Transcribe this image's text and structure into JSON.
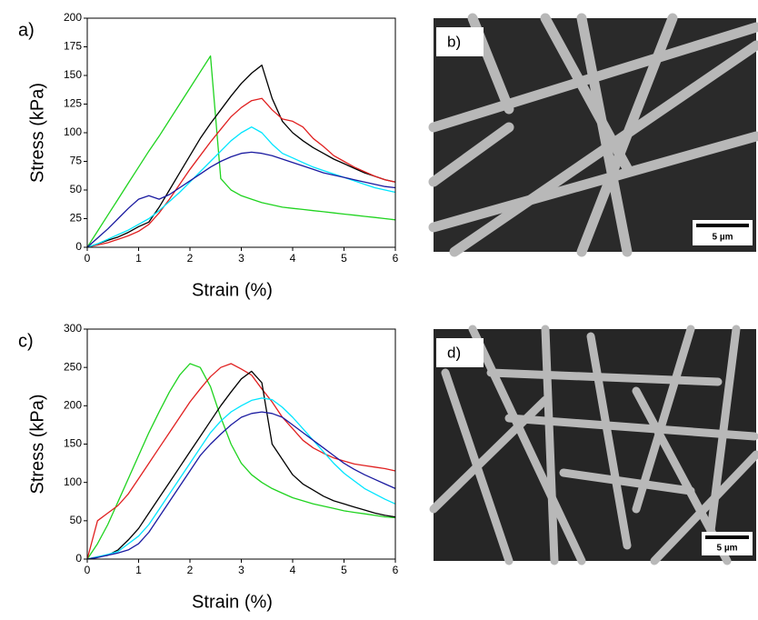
{
  "chart_data": [
    {
      "type": "line",
      "panel": "a)",
      "x_label": "Strain (%)",
      "y_label": "Stress (kPa)",
      "x": [
        0,
        0.2,
        0.4,
        0.6,
        0.8,
        1,
        1.2,
        1.4,
        1.6,
        1.8,
        2,
        2.2,
        2.4,
        2.6,
        2.8,
        3,
        3.2,
        3.4,
        3.6,
        3.8,
        4,
        4.2,
        4.4,
        4.6,
        4.8,
        5,
        5.2,
        5.4,
        5.6,
        5.8,
        6
      ],
      "xlim": [
        0,
        6
      ],
      "xticks": [
        0,
        1,
        2,
        3,
        4,
        5,
        6
      ],
      "ylim": [
        0,
        200
      ],
      "yticks": [
        0,
        25,
        50,
        75,
        100,
        125,
        150,
        175,
        200
      ],
      "series": [
        {
          "color": "#1fd31f",
          "values": [
            0,
            14,
            28,
            42,
            56,
            70,
            84,
            97,
            111,
            125,
            139,
            153,
            167,
            60,
            50,
            45,
            42,
            39,
            37,
            35,
            34,
            33,
            32,
            31,
            30,
            29,
            28,
            27,
            26,
            25,
            24
          ]
        },
        {
          "color": "#000000",
          "values": [
            0,
            3,
            6,
            9,
            13,
            18,
            22,
            35,
            50,
            65,
            80,
            95,
            108,
            120,
            132,
            143,
            152,
            159,
            130,
            110,
            100,
            93,
            87,
            82,
            77,
            73,
            69,
            65,
            62,
            59,
            57
          ]
        },
        {
          "color": "#e02020",
          "values": [
            0,
            2,
            4,
            7,
            10,
            14,
            20,
            30,
            42,
            55,
            68,
            80,
            92,
            103,
            114,
            122,
            128,
            130,
            120,
            112,
            110,
            105,
            95,
            88,
            80,
            75,
            70,
            66,
            62,
            59,
            57
          ]
        },
        {
          "color": "#00e5ff",
          "values": [
            0,
            3,
            7,
            11,
            15,
            20,
            25,
            32,
            40,
            48,
            57,
            66,
            75,
            84,
            93,
            100,
            105,
            100,
            90,
            82,
            78,
            74,
            70,
            67,
            64,
            61,
            58,
            55,
            52,
            50,
            48
          ]
        },
        {
          "color": "#1a1aa0",
          "values": [
            0,
            8,
            16,
            25,
            34,
            42,
            45,
            42,
            46,
            52,
            58,
            64,
            70,
            75,
            79,
            82,
            83,
            82,
            80,
            77,
            74,
            71,
            68,
            65,
            63,
            61,
            59,
            57,
            55,
            53,
            52
          ]
        }
      ]
    },
    {
      "type": "line",
      "panel": "c)",
      "x_label": "Strain (%)",
      "y_label": "Stress (kPa)",
      "x": [
        0,
        0.2,
        0.4,
        0.6,
        0.8,
        1,
        1.2,
        1.4,
        1.6,
        1.8,
        2,
        2.2,
        2.4,
        2.6,
        2.8,
        3,
        3.2,
        3.4,
        3.6,
        3.8,
        4,
        4.2,
        4.4,
        4.6,
        4.8,
        5,
        5.2,
        5.4,
        5.6,
        5.8,
        6
      ],
      "xlim": [
        0,
        6
      ],
      "xticks": [
        0,
        1,
        2,
        3,
        4,
        5,
        6
      ],
      "ylim": [
        0,
        300
      ],
      "yticks": [
        0,
        50,
        100,
        150,
        200,
        250,
        300
      ],
      "series": [
        {
          "color": "#1fd31f",
          "values": [
            0,
            20,
            45,
            75,
            105,
            135,
            165,
            192,
            218,
            240,
            255,
            250,
            225,
            185,
            150,
            125,
            110,
            100,
            92,
            86,
            80,
            76,
            72,
            69,
            66,
            63,
            61,
            59,
            57,
            55,
            54
          ]
        },
        {
          "color": "#e02020",
          "values": [
            0,
            50,
            60,
            70,
            85,
            105,
            125,
            145,
            165,
            185,
            205,
            222,
            238,
            250,
            255,
            248,
            240,
            222,
            205,
            185,
            170,
            155,
            145,
            138,
            132,
            128,
            124,
            122,
            120,
            118,
            115
          ]
        },
        {
          "color": "#000000",
          "values": [
            0,
            3,
            5,
            12,
            25,
            40,
            60,
            80,
            100,
            120,
            140,
            160,
            180,
            200,
            218,
            235,
            245,
            230,
            150,
            130,
            110,
            98,
            90,
            82,
            76,
            72,
            68,
            64,
            60,
            57,
            55
          ]
        },
        {
          "color": "#00e5ff",
          "values": [
            0,
            3,
            6,
            10,
            20,
            30,
            45,
            65,
            85,
            105,
            125,
            145,
            165,
            180,
            192,
            200,
            207,
            210,
            208,
            198,
            185,
            170,
            155,
            140,
            125,
            112,
            102,
            92,
            85,
            78,
            72
          ]
        },
        {
          "color": "#1a1aa0",
          "values": [
            0,
            2,
            5,
            8,
            12,
            20,
            35,
            55,
            75,
            95,
            115,
            135,
            150,
            163,
            175,
            185,
            190,
            192,
            190,
            185,
            175,
            165,
            155,
            145,
            135,
            125,
            117,
            110,
            104,
            98,
            92
          ]
        }
      ]
    }
  ],
  "images": [
    {
      "label": "b)",
      "scale_bar": "5 µm"
    },
    {
      "label": "d)",
      "scale_bar": "5 µm"
    }
  ]
}
